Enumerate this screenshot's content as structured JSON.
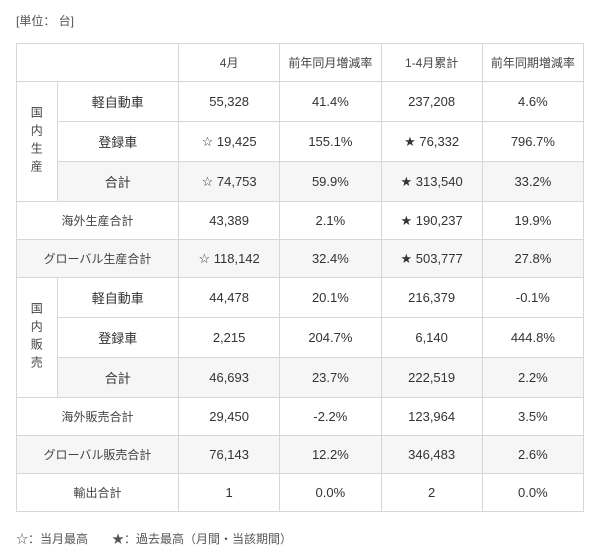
{
  "unit_label": "[単位：  台]",
  "columns": {
    "c1": "4月",
    "c2": "前年同月増減率",
    "c3": "1-4月累計",
    "c4": "前年同期増減率"
  },
  "sections": {
    "domestic_prod": {
      "vlabel": "国内生産",
      "rows": {
        "kei": {
          "label": "軽自動車",
          "v1": "55,328",
          "v2": "41.4%",
          "v3": "237,208",
          "v4": "4.6%"
        },
        "reg": {
          "label": "登録車",
          "v1": "☆ 19,425",
          "v2": "155.1%",
          "v3": "★ 76,332",
          "v4": "796.7%"
        },
        "total": {
          "label": "合計",
          "v1": "☆ 74,753",
          "v2": "59.9%",
          "v3": "★ 313,540",
          "v4": "33.2%"
        }
      }
    },
    "overseas_prod": {
      "label": "海外生産合計",
      "v1": "43,389",
      "v2": "2.1%",
      "v3": "★ 190,237",
      "v4": "19.9%"
    },
    "global_prod": {
      "label": "グローバル生産合計",
      "v1": "☆ 118,142",
      "v2": "32.4%",
      "v3": "★ 503,777",
      "v4": "27.8%"
    },
    "domestic_sales": {
      "vlabel": "国内販売",
      "rows": {
        "kei": {
          "label": "軽自動車",
          "v1": "44,478",
          "v2": "20.1%",
          "v3": "216,379",
          "v4": "-0.1%"
        },
        "reg": {
          "label": "登録車",
          "v1": "2,215",
          "v2": "204.7%",
          "v3": "6,140",
          "v4": "444.8%"
        },
        "total": {
          "label": "合計",
          "v1": "46,693",
          "v2": "23.7%",
          "v3": "222,519",
          "v4": "2.2%"
        }
      }
    },
    "overseas_sales": {
      "label": "海外販売合計",
      "v1": "29,450",
      "v2": "-2.2%",
      "v3": "123,964",
      "v4": "3.5%"
    },
    "global_sales": {
      "label": "グローバル販売合計",
      "v1": "76,143",
      "v2": "12.2%",
      "v3": "346,483",
      "v4": "2.6%"
    },
    "export_total": {
      "label": "輸出合計",
      "v1": "1",
      "v2": "0.0%",
      "v3": "2",
      "v4": "0.0%"
    }
  },
  "legend": "☆：当月最高　　★：過去最高（月間・当該期間）"
}
